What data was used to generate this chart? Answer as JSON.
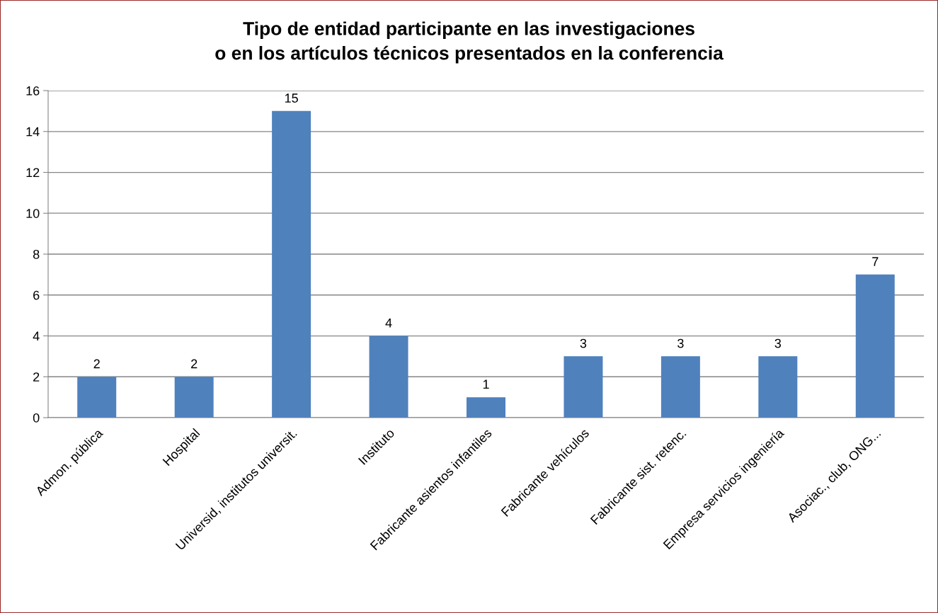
{
  "chart_data": {
    "type": "bar",
    "title": "Tipo de entidad participante en las investigaciones\no en los artículos técnicos presentados en la conferencia",
    "categories": [
      "Admon. pública",
      "Hospital",
      "Universid, institutos universit.",
      "Instituto",
      "Fabricante asientos infantiles",
      "Fabricante vehículos",
      "Fabricante sist. retenc.",
      "Empresa servicios ingeniería",
      "Asociac., club, ONG..."
    ],
    "values": [
      2,
      2,
      15,
      4,
      1,
      3,
      3,
      3,
      7
    ],
    "color": "#4f81bd",
    "ylim": [
      0,
      16
    ],
    "yticks": [
      0,
      2,
      4,
      6,
      8,
      10,
      12,
      14,
      16
    ],
    "grid": "y",
    "data_labels": true,
    "legend": false
  }
}
